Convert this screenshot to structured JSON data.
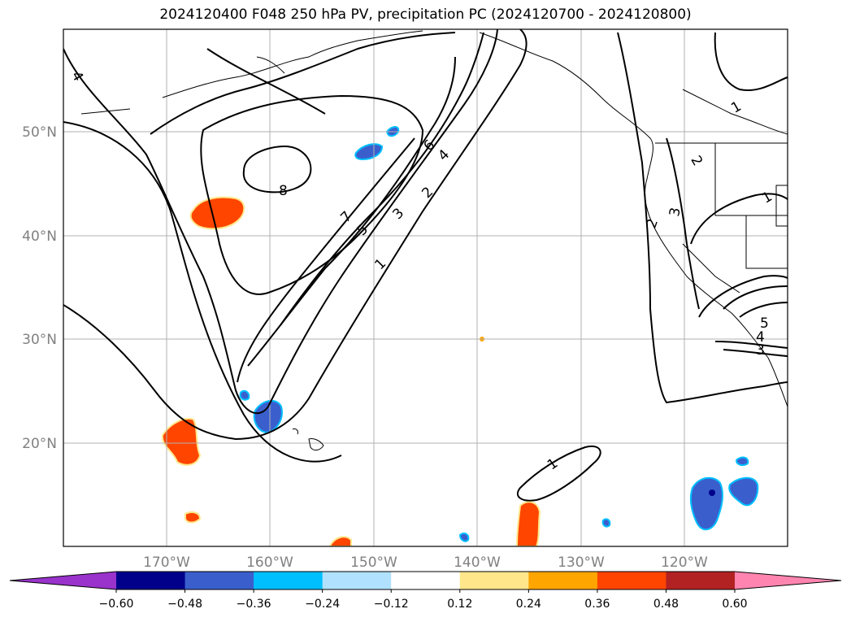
{
  "title": "2024120400 F048 250 hPa PV, precipitation PC (2024120700 - 2024120800)",
  "map": {
    "lon_labels": [
      "170°W",
      "160°W",
      "150°W",
      "140°W",
      "130°W",
      "120°W"
    ],
    "lat_labels": [
      "50°N",
      "40°N",
      "30°N",
      "20°N"
    ],
    "contour_labels": [
      {
        "text": "4"
      },
      {
        "text": "8"
      },
      {
        "text": "7"
      },
      {
        "text": "6"
      },
      {
        "text": "5"
      },
      {
        "text": "4"
      },
      {
        "text": "3"
      },
      {
        "text": "2"
      },
      {
        "text": "1"
      },
      {
        "text": "1"
      },
      {
        "text": "1"
      },
      {
        "text": "2"
      },
      {
        "text": "2"
      },
      {
        "text": "3"
      },
      {
        "text": "1"
      },
      {
        "text": "5"
      },
      {
        "text": "4"
      },
      {
        "text": "3"
      }
    ]
  },
  "colorbar": {
    "tick_labels": [
      "−0.60",
      "−0.48",
      "−0.36",
      "−0.24",
      "−0.12",
      "0.12",
      "0.24",
      "0.36",
      "0.48",
      "0.60"
    ],
    "colors": [
      "#9933cc",
      "#00008b",
      "#3a5fcd",
      "#00bfff",
      "#b0e2ff",
      "#ffffff",
      "#ffe68a",
      "#ffa500",
      "#ff4500",
      "#b22222",
      "#ff85b0"
    ]
  }
}
